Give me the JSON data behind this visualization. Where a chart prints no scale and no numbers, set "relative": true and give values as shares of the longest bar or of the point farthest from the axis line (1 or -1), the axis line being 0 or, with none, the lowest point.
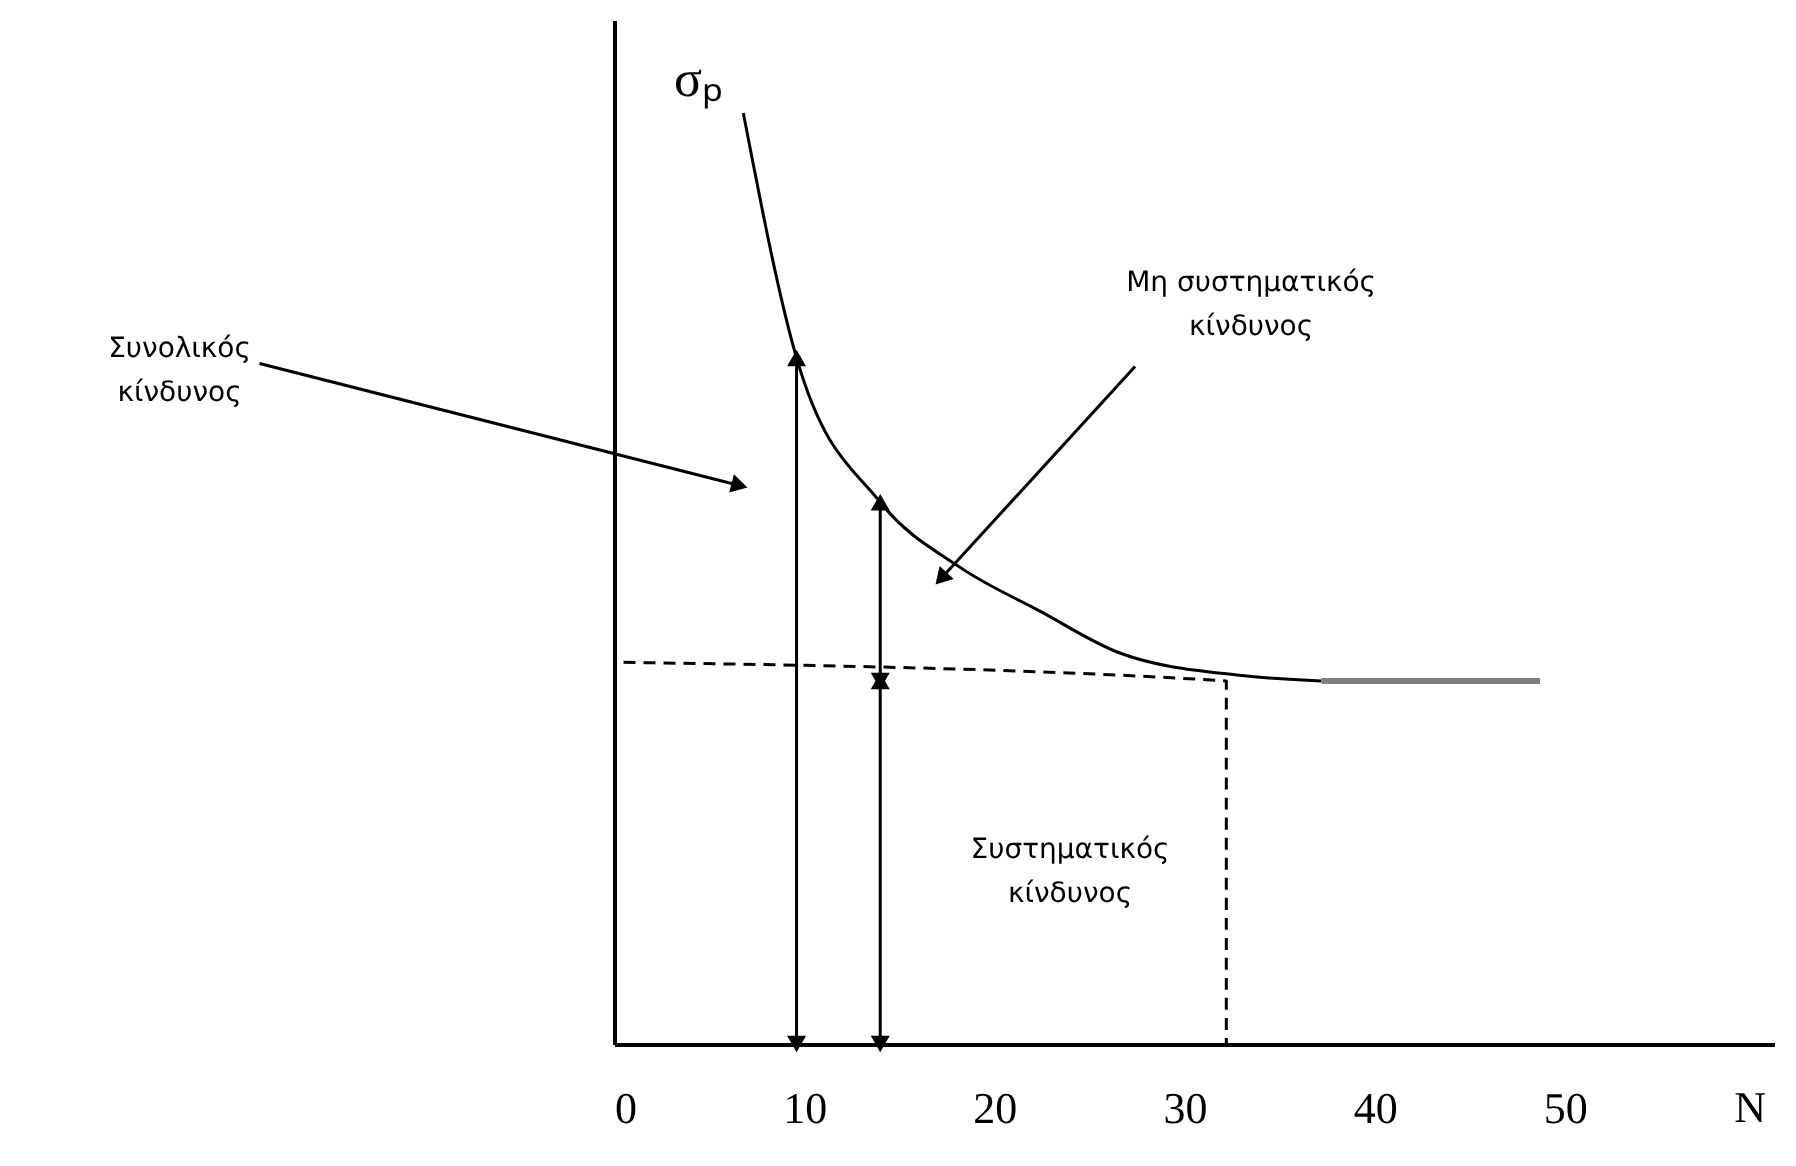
{
  "chart_data": {
    "type": "line",
    "relative": true,
    "ylabel": "σₚ",
    "xlabel": "N",
    "xlim": [
      0,
      61
    ],
    "xticks": [
      0,
      10,
      20,
      30,
      40,
      50
    ],
    "tick_labels": "x",
    "grid": false,
    "series": [
      {
        "color": "#000000",
        "x": [
          6.8,
          9.6,
          14.0,
          18.2,
          22.4,
          26.6,
          32.9,
          37.2
        ],
        "values": [
          1,
          0.737,
          0.582,
          0.512,
          0.465,
          0.42,
          0.396,
          0.39
        ]
      },
      {
        "color": "#808080",
        "x": [
          37.2,
          48.7
        ],
        "values": [
          0.39,
          0.39
        ]
      },
      {
        "color": "#000000",
        "line_style": "dashed",
        "x": [
          0.5,
          32.2,
          32.2
        ],
        "values": [
          0.41,
          0.39,
          0
        ]
      },
      {
        "color": "#000000",
        "marker": "triangle",
        "x": [
          9.6,
          9.6
        ],
        "values": [
          0,
          0.737
        ]
      },
      {
        "color": "#000000",
        "marker": "triangle",
        "x": [
          14.0,
          14.0
        ],
        "values": [
          0,
          0.39
        ]
      },
      {
        "color": "#000000",
        "marker": "triangle",
        "x": [
          14.0,
          14.0
        ],
        "values": [
          0.39,
          0.582
        ]
      }
    ],
    "annotations": [
      {
        "text": "Συνολικός κίνδυνος",
        "x": 6.6,
        "y": 0.6
      },
      {
        "text": "Μη συστηματικός κίνδυνος",
        "x": 17.2,
        "y": 0.5
      },
      "Συστηματικός κίνδυνος"
    ]
  }
}
